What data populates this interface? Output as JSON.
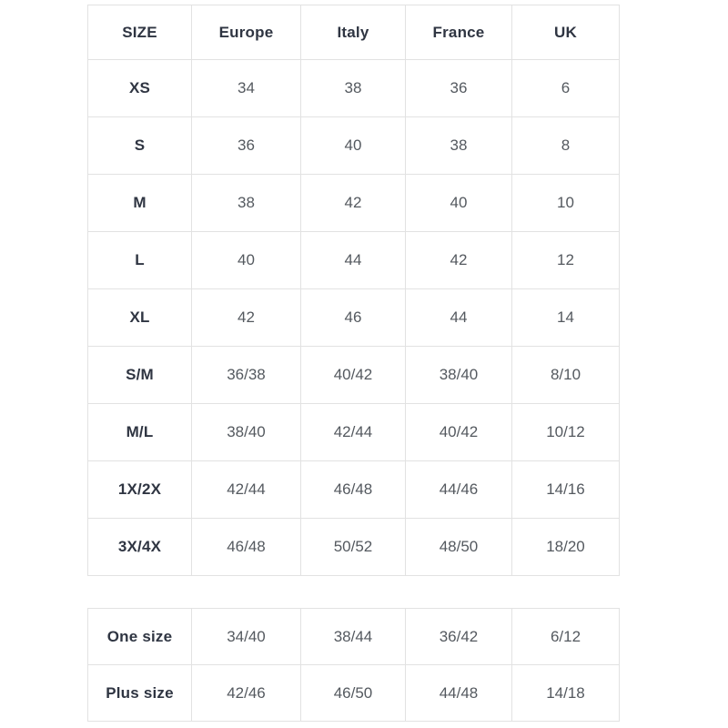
{
  "colors": {
    "border": "#e2e2e2",
    "header_text": "#2f3542",
    "value_text": "#54595f",
    "background": "#ffffff"
  },
  "size_table": {
    "headers": [
      "SIZE",
      "Europe",
      "Italy",
      "France",
      "UK"
    ],
    "rows": [
      {
        "label": "XS",
        "values": [
          "34",
          "38",
          "36",
          "6"
        ]
      },
      {
        "label": "S",
        "values": [
          "36",
          "40",
          "38",
          "8"
        ]
      },
      {
        "label": "M",
        "values": [
          "38",
          "42",
          "40",
          "10"
        ]
      },
      {
        "label": "L",
        "values": [
          "40",
          "44",
          "42",
          "12"
        ]
      },
      {
        "label": "XL",
        "values": [
          "42",
          "46",
          "44",
          "14"
        ]
      },
      {
        "label": "S/M",
        "values": [
          "36/38",
          "40/42",
          "38/40",
          "8/10"
        ]
      },
      {
        "label": "M/L",
        "values": [
          "38/40",
          "42/44",
          "40/42",
          "10/12"
        ]
      },
      {
        "label": "1X/2X",
        "values": [
          "42/44",
          "46/48",
          "44/46",
          "14/16"
        ]
      },
      {
        "label": "3X/4X",
        "values": [
          "46/48",
          "50/52",
          "48/50",
          "18/20"
        ]
      }
    ]
  },
  "extra_table": {
    "rows": [
      {
        "label": "One size",
        "values": [
          "34/40",
          "38/44",
          "36/42",
          "6/12"
        ]
      },
      {
        "label": "Plus size",
        "values": [
          "42/46",
          "46/50",
          "44/48",
          "14/18"
        ]
      }
    ]
  }
}
